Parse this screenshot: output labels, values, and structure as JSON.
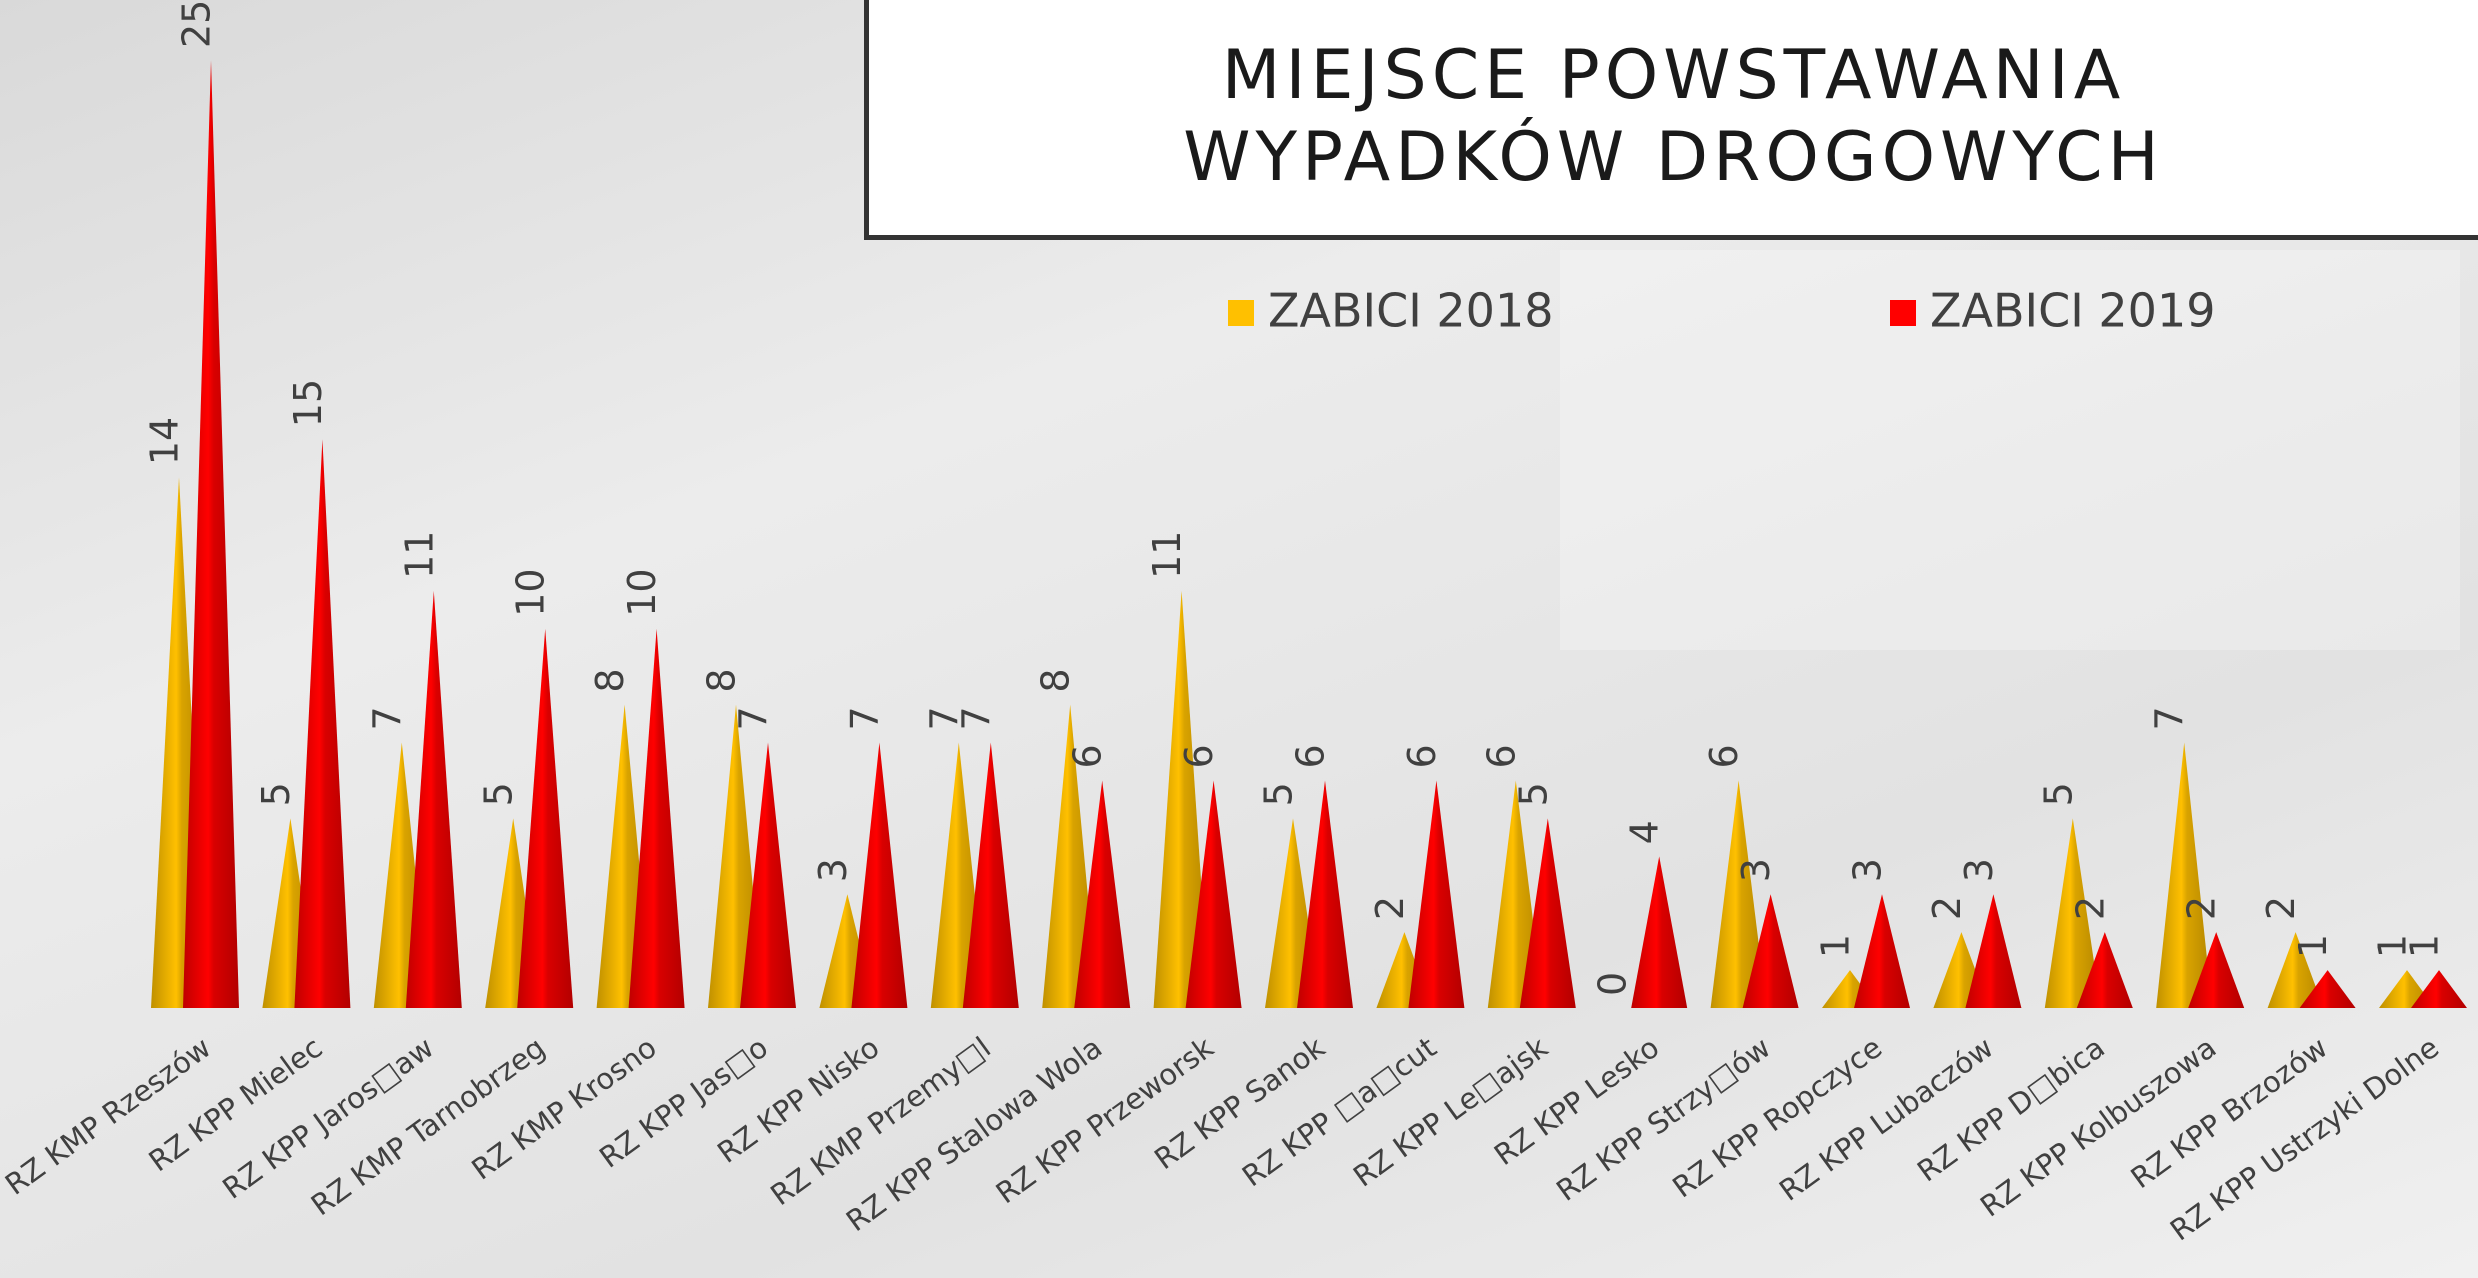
{
  "chart_data": {
    "type": "bar",
    "title": "MIEJSCE POWSTAWANIA WYPADKÓW DROGOWYCH",
    "categories": [
      "RZ KMP Rzeszów",
      "RZ KPP Mielec",
      "RZ KPP Jaros□aw",
      "RZ KMP Tarnobrzeg",
      "RZ KMP Krosno",
      "RZ KPP Jas□o",
      "RZ KPP Nisko",
      "RZ KMP Przemy□l",
      "RZ KPP Stalowa Wola",
      "RZ KPP Przeworsk",
      "RZ KPP Sanok",
      "RZ KPP □a□cut",
      "RZ KPP Le□ajsk",
      "RZ KPP Lesko",
      "RZ KPP Strzy□ów",
      "RZ KPP Ropczyce",
      "RZ KPP Lubaczów",
      "RZ KPP D□bica",
      "RZ KPP Kolbuszowa",
      "RZ KPP Brzozów",
      "RZ KPP Ustrzyki Dolne"
    ],
    "series": [
      {
        "name": "ZABICI 2018",
        "color": "#FFC000",
        "values": [
          14,
          5,
          7,
          5,
          8,
          8,
          3,
          7,
          8,
          11,
          5,
          2,
          6,
          0,
          6,
          1,
          2,
          5,
          7,
          2,
          1
        ]
      },
      {
        "name": "ZABICI 2019",
        "color": "#FF0000",
        "values": [
          25,
          15,
          11,
          10,
          10,
          7,
          7,
          7,
          6,
          6,
          6,
          6,
          5,
          4,
          3,
          3,
          3,
          2,
          2,
          1,
          1
        ]
      }
    ]
  }
}
